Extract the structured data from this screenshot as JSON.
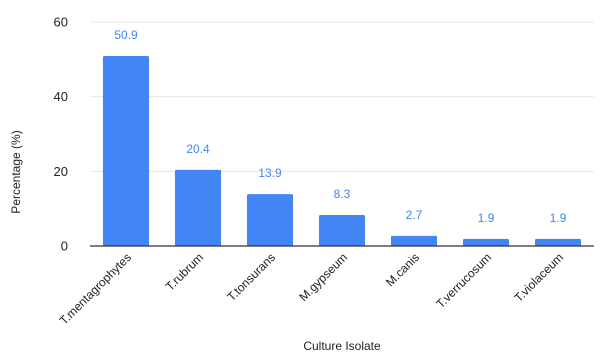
{
  "chart_data": {
    "type": "bar",
    "title": "",
    "xlabel": "Culture Isolate",
    "ylabel": "Percentage (%)",
    "ylim": [
      0,
      60
    ],
    "yticks": [
      0,
      20,
      40,
      60
    ],
    "grid": true,
    "legend": "none",
    "bar_color": "#4285f4",
    "label_color": "#4285f4",
    "categories": [
      "T.mentagrophytes",
      "T.rubrum",
      "T.tonsurans",
      "M.gypseum",
      "M.canis",
      "T.verrucosum",
      "T.violaceum"
    ],
    "values": [
      50.9,
      20.4,
      13.9,
      8.3,
      2.7,
      1.9,
      1.9
    ],
    "data_labels": [
      "50.9",
      "20.4",
      "13.9",
      "8.3",
      "2.7",
      "1.9",
      "1.9"
    ]
  }
}
